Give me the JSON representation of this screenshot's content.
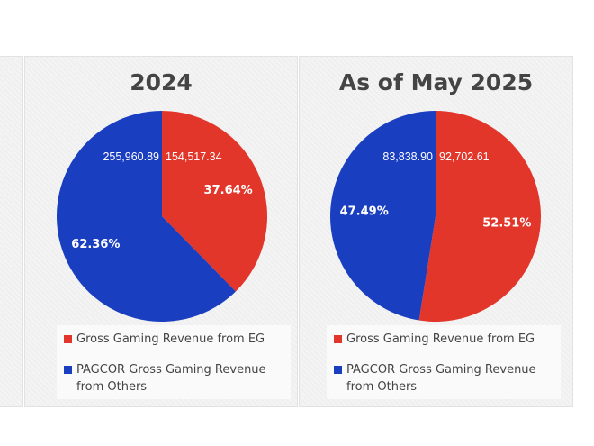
{
  "colors": {
    "eg": "#e3362a",
    "others": "#1a3ec0"
  },
  "chart_data": [
    {
      "type": "pie",
      "title": "2024",
      "categories": [
        "Gross Gaming Revenue from EG",
        "PAGCOR Gross Gaming Revenue from Others"
      ],
      "values": [
        154517.34,
        255960.89
      ],
      "value_labels": [
        "154,517.34",
        "255,960.89"
      ],
      "percent_labels": [
        "37.64%",
        "62.36%"
      ],
      "legend": "bottom",
      "start": "12 o'clock clockwise"
    },
    {
      "type": "pie",
      "title": "As of May 2025",
      "categories": [
        "Gross Gaming Revenue from EG",
        "PAGCOR Gross Gaming Revenue from Others"
      ],
      "values": [
        92702.61,
        83838.9
      ],
      "value_labels": [
        "92,702.61",
        "83,838.90"
      ],
      "percent_labels": [
        "52.51%",
        "47.49%"
      ],
      "legend": "bottom",
      "start": "12 o'clock clockwise"
    }
  ]
}
